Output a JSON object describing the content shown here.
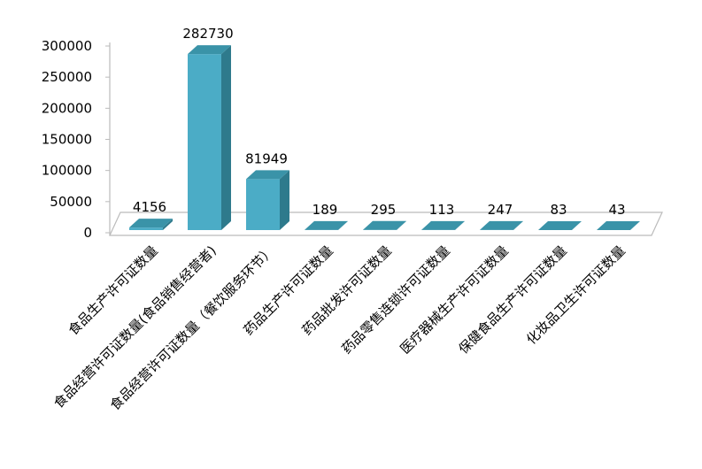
{
  "chart_data": {
    "type": "bar3d",
    "categories": [
      "食品生产许可证数量",
      "食品经营许可证数量(食品销售经营者)",
      "食品经营许可证数量（餐饮服务环节）",
      "药品生产许可证数量",
      "药品批发许可证数量",
      "药品零售连锁许可证数量",
      "医疗器械生产许可证数量",
      "保健食品生产许可证数量",
      "化妆品卫生许可证数量"
    ],
    "values": [
      4156,
      282730,
      81949,
      189,
      295,
      113,
      247,
      83,
      43
    ],
    "color": "#4bacc6",
    "ylim": [
      0,
      300000
    ],
    "yticks": [
      0,
      50000,
      100000,
      150000,
      200000,
      250000,
      300000
    ],
    "grid": false
  }
}
